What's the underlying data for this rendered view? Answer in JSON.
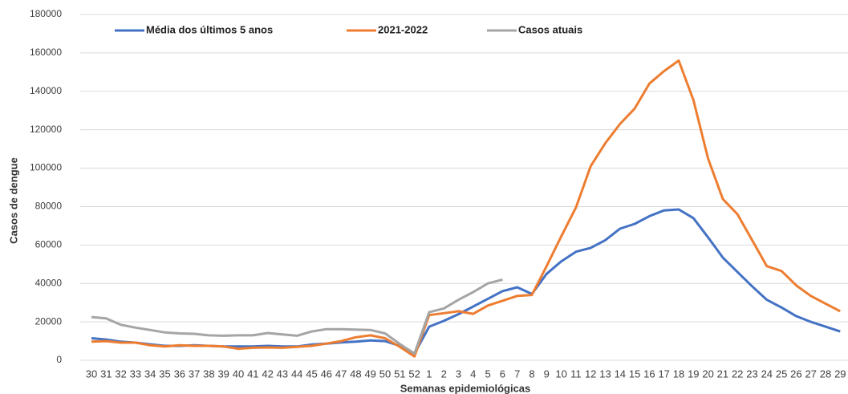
{
  "chart_data": {
    "type": "line",
    "x_label": "Semanas epidemiológicas",
    "y_label": "Casos de dengue",
    "categories": [
      "30",
      "31",
      "32",
      "33",
      "34",
      "35",
      "36",
      "37",
      "38",
      "39",
      "40",
      "41",
      "42",
      "43",
      "44",
      "45",
      "46",
      "47",
      "48",
      "49",
      "50",
      "51",
      "52",
      "1",
      "2",
      "3",
      "4",
      "5",
      "6",
      "7",
      "8",
      "9",
      "10",
      "11",
      "12",
      "13",
      "14",
      "15",
      "16",
      "17",
      "18",
      "19",
      "20",
      "21",
      "22",
      "23",
      "24",
      "25",
      "26",
      "27",
      "28",
      "29"
    ],
    "ylim": [
      0,
      180000
    ],
    "yticks": [
      0,
      20000,
      40000,
      60000,
      80000,
      100000,
      120000,
      140000,
      160000,
      180000
    ],
    "grid": true,
    "legend": "top",
    "series": [
      {
        "name": "Média dos últimos 5 anos",
        "color": "#4472c4",
        "values": [
          11500,
          10800,
          9700,
          9200,
          8300,
          7500,
          7500,
          7800,
          7500,
          7200,
          7200,
          7200,
          7500,
          7200,
          7200,
          8200,
          8700,
          9300,
          9700,
          10300,
          10000,
          7500,
          3500,
          17500,
          20500,
          24000,
          28000,
          32000,
          36000,
          38000,
          34500,
          45000,
          51500,
          56500,
          58500,
          62500,
          68500,
          71000,
          75000,
          78000,
          78500,
          74000,
          64000,
          53500,
          46000,
          38500,
          31500,
          27500,
          23000,
          20000,
          17500,
          15000
        ]
      },
      {
        "name": "2021-2022",
        "color": "#ed7d31",
        "values": [
          9700,
          10000,
          9200,
          9200,
          7800,
          7200,
          7800,
          7500,
          7500,
          7200,
          6000,
          6500,
          6700,
          6500,
          7000,
          7500,
          8700,
          10000,
          12000,
          13000,
          11500,
          7000,
          2000,
          23500,
          24500,
          25500,
          24200,
          28500,
          31000,
          33500,
          34000,
          49000,
          64500,
          79500,
          101000,
          113000,
          123000,
          131000,
          144000,
          150500,
          156000,
          135500,
          105000,
          84000,
          76000,
          62500,
          49000,
          46500,
          39000,
          33500,
          29500,
          25500
        ]
      },
      {
        "name": "Casos atuais",
        "color": "#a5a5a5",
        "values": [
          22500,
          21800,
          18500,
          17000,
          15800,
          14500,
          14000,
          13800,
          13000,
          12800,
          13000,
          13000,
          14200,
          13500,
          12800,
          15000,
          16200,
          16200,
          16000,
          15800,
          14000,
          8500,
          3500,
          25000,
          27000,
          31500,
          35500,
          40000,
          42000,
          null,
          null,
          null,
          null,
          null,
          null,
          null,
          null,
          null,
          null,
          null,
          null,
          null,
          null,
          null,
          null,
          null,
          null,
          null,
          null,
          null,
          null,
          null
        ]
      }
    ]
  }
}
